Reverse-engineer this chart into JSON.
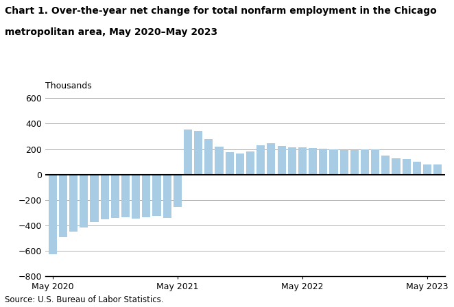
{
  "title_line1": "Chart 1. Over-the-year net change for total nonfarm employment in the Chicago",
  "title_line2": "metropolitan area, May 2020–May 2023",
  "ylabel": "Thousands",
  "source": "Source: U.S. Bureau of Labor Statistics.",
  "bar_color": "#a8cce4",
  "ylim": [
    -800,
    600
  ],
  "yticks": [
    -800,
    -600,
    -400,
    -200,
    0,
    200,
    400,
    600
  ],
  "x_tick_labels": [
    "May 2020",
    "May 2021",
    "May 2022",
    "May 2023"
  ],
  "x_tick_positions": [
    0,
    12,
    24,
    36
  ],
  "values": [
    -625,
    -490,
    -450,
    -415,
    -375,
    -350,
    -340,
    -335,
    -345,
    -335,
    -325,
    -340,
    -255,
    355,
    345,
    280,
    220,
    175,
    165,
    180,
    230,
    245,
    225,
    215,
    215,
    210,
    205,
    200,
    190,
    195,
    200,
    200,
    150,
    130,
    125,
    100,
    80,
    80
  ],
  "background_color": "#ffffff",
  "grid_color": "#b0b0b0"
}
